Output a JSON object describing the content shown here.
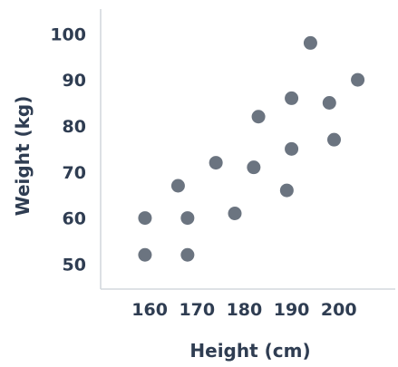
{
  "chart_data": {
    "type": "scatter",
    "title": "",
    "xlabel": "Height (cm)",
    "ylabel": "Weight (kg)",
    "xlim": [
      150,
      206
    ],
    "ylim": [
      43,
      103
    ],
    "x_ticks": [
      160,
      170,
      180,
      190,
      200
    ],
    "y_ticks": [
      50,
      60,
      70,
      80,
      90,
      100
    ],
    "grid": false,
    "legend": "none",
    "point_color": "#6b7480",
    "text_color": "#2f3d52",
    "axis_color": "#d3d8de",
    "points": [
      {
        "x": 159,
        "y": 60
      },
      {
        "x": 159,
        "y": 52
      },
      {
        "x": 166,
        "y": 67
      },
      {
        "x": 168,
        "y": 60
      },
      {
        "x": 168,
        "y": 52
      },
      {
        "x": 174,
        "y": 72
      },
      {
        "x": 178,
        "y": 61
      },
      {
        "x": 182,
        "y": 71
      },
      {
        "x": 183,
        "y": 82
      },
      {
        "x": 189,
        "y": 66
      },
      {
        "x": 190,
        "y": 75
      },
      {
        "x": 190,
        "y": 86
      },
      {
        "x": 194,
        "y": 98
      },
      {
        "x": 198,
        "y": 85
      },
      {
        "x": 199,
        "y": 77
      },
      {
        "x": 204,
        "y": 90
      }
    ]
  }
}
